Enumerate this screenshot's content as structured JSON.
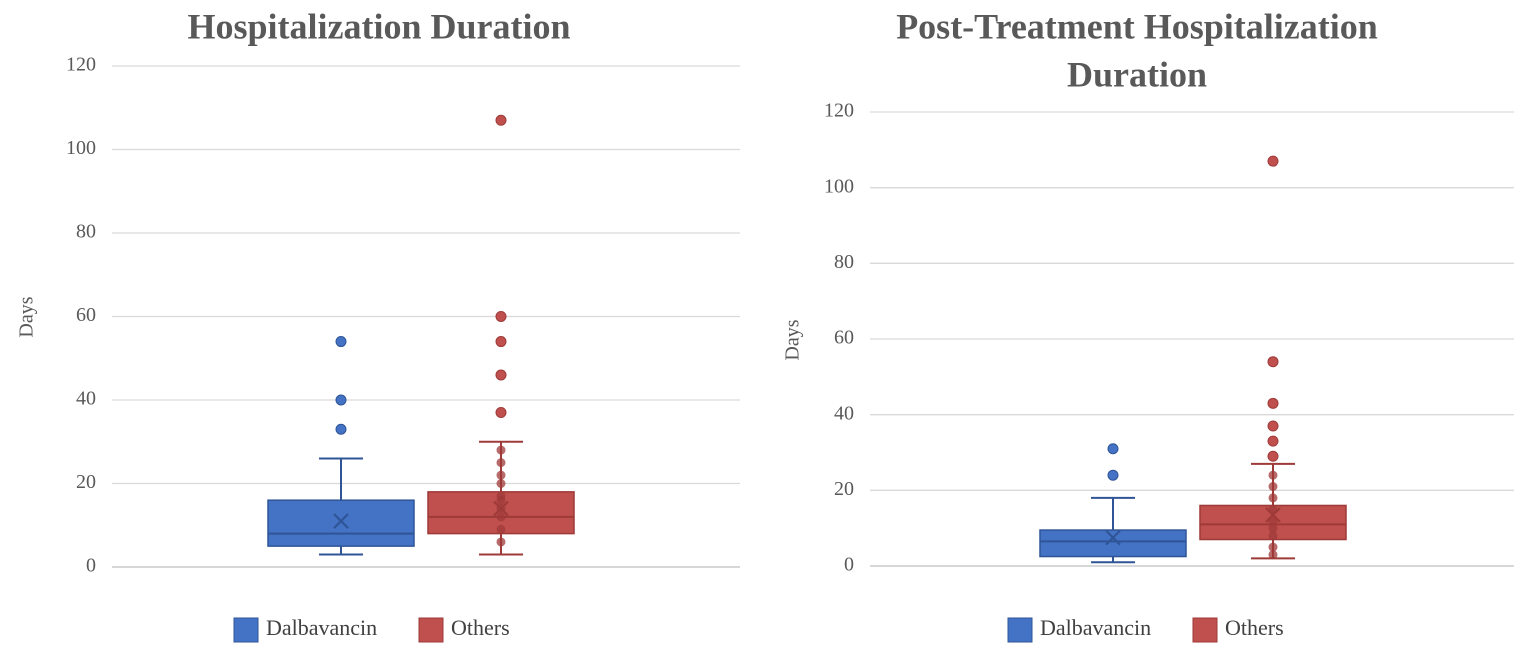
{
  "chart_data": [
    {
      "type": "box",
      "title": "Hospitalization Duration",
      "title_lines": [
        "Hospitalization Duration"
      ],
      "ylabel": "Days",
      "ylim": [
        0,
        120
      ],
      "yticks": [
        "0",
        "20",
        "40",
        "60",
        "80",
        "100",
        "120"
      ],
      "grid": true,
      "legend_placement": "bottom",
      "series": [
        {
          "name": "Dalbavancin",
          "color": "#4472C4",
          "edge": "#2F5597",
          "min": 3,
          "q1": 5,
          "median": 8,
          "q3": 16,
          "max": 26,
          "mean": 11,
          "inner_points": [],
          "outliers": [
            33,
            40,
            54
          ]
        },
        {
          "name": "Others",
          "color": "#C0504D",
          "edge": "#9E3A38",
          "min": 3,
          "q1": 8,
          "median": 12,
          "q3": 18,
          "max": 30,
          "mean": 14,
          "inner_points": [
            6,
            9,
            12,
            14,
            16,
            17,
            20,
            22,
            25,
            28
          ],
          "outliers": [
            37,
            46,
            54,
            60,
            107
          ]
        }
      ]
    },
    {
      "type": "box",
      "title": "Post-Treatment Hospitalization Duration",
      "title_lines": [
        "Post-Treatment Hospitalization",
        "Duration"
      ],
      "ylabel": "Days",
      "ylim": [
        0,
        120
      ],
      "yticks": [
        "0",
        "20",
        "40",
        "60",
        "80",
        "100",
        "120"
      ],
      "grid": true,
      "legend_placement": "bottom",
      "series": [
        {
          "name": "Dalbavancin",
          "color": "#4472C4",
          "edge": "#2F5597",
          "min": 1,
          "q1": 2.5,
          "median": 6.5,
          "q3": 9.5,
          "max": 18,
          "mean": 7.5,
          "inner_points": [],
          "outliers": [
            24,
            31
          ]
        },
        {
          "name": "Others",
          "color": "#C0504D",
          "edge": "#9E3A38",
          "min": 2,
          "q1": 7,
          "median": 11,
          "q3": 16,
          "max": 27,
          "mean": 13.5,
          "inner_points": [
            3,
            5,
            8,
            10,
            12,
            15,
            18,
            21,
            24
          ],
          "outliers": [
            29,
            33,
            37,
            43,
            54,
            107
          ]
        }
      ]
    }
  ]
}
